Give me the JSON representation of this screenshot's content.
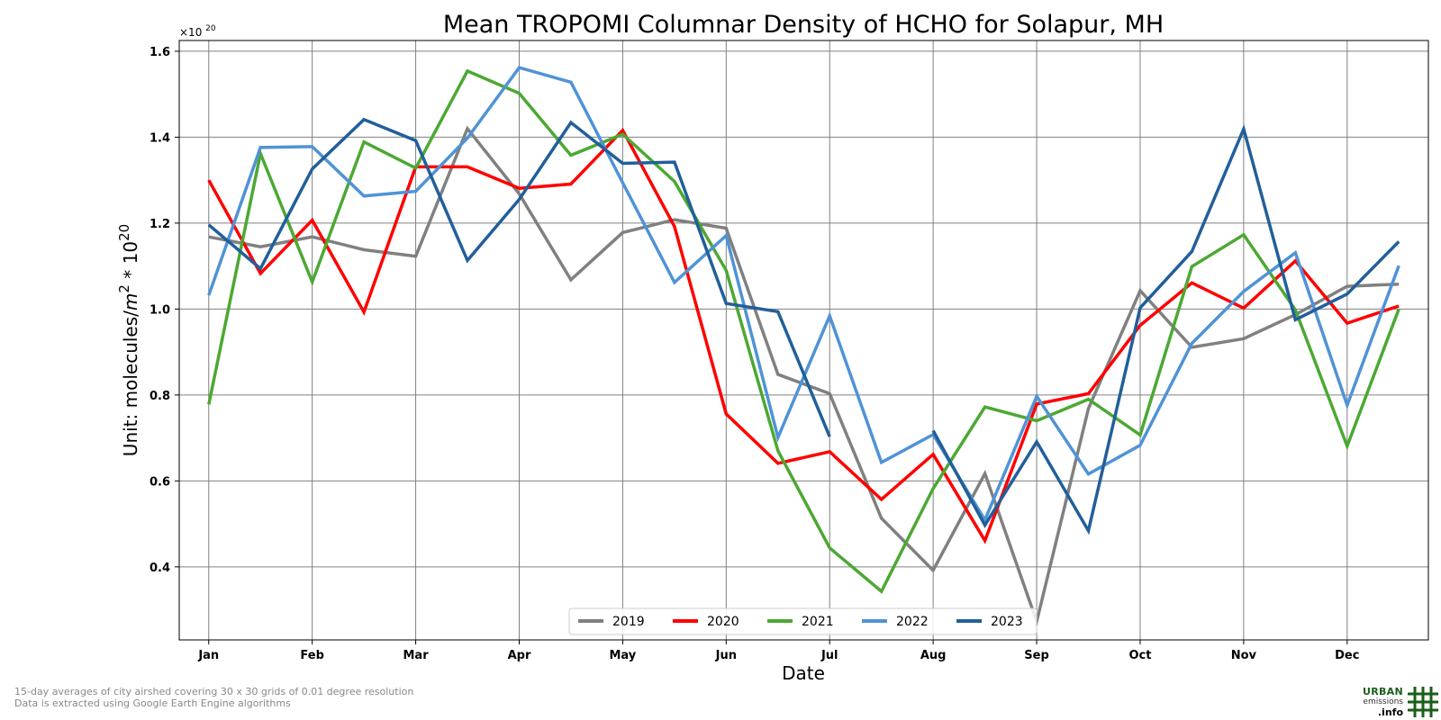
{
  "chart_data": {
    "type": "line",
    "title": "Mean TROPOMI Columnar Density of HCHO for Solapur, MH",
    "xlabel": "Date",
    "ylabel": "Unit: molecules/m² * 10²⁰",
    "ylabel_parts": {
      "prefix": "Unit: molecules/",
      "var": "m",
      "sup1": "2",
      "mid": " * 10",
      "sup2": "20"
    },
    "scale_label": {
      "base": "×10",
      "exp": "20"
    },
    "x_tick_labels": [
      "Jan",
      "Feb",
      "Mar",
      "Apr",
      "May",
      "Jun",
      "Jul",
      "Aug",
      "Sep",
      "Oct",
      "Nov",
      "Dec"
    ],
    "y_ticks": [
      0.4,
      0.6,
      0.8,
      1.0,
      1.2,
      1.4,
      1.6
    ],
    "y_tick_labels": [
      "0.4",
      "0.6",
      "0.8",
      "1.0",
      "1.2",
      "1.4",
      "1.6"
    ],
    "ylim": [
      0.23,
      1.625
    ],
    "xlim": [
      -0.57,
      23.57
    ],
    "grid": true,
    "legend_position": "bottom-center",
    "x_points_per_month": 2,
    "series": [
      {
        "name": "2019",
        "color": "#808080",
        "values": [
          1.168,
          1.145,
          1.168,
          1.138,
          1.123,
          1.42,
          1.268,
          1.068,
          1.178,
          1.208,
          1.188,
          0.848,
          0.803,
          0.513,
          0.392,
          0.617,
          0.273,
          0.768,
          1.043,
          0.911,
          0.931,
          0.987,
          1.053,
          1.058
        ]
      },
      {
        "name": "2020",
        "color": "#ff0000",
        "values": [
          1.3,
          1.083,
          1.207,
          0.993,
          1.331,
          1.331,
          1.281,
          1.291,
          1.416,
          1.192,
          0.756,
          0.641,
          0.668,
          0.557,
          0.662,
          0.461,
          0.779,
          0.803,
          0.962,
          1.061,
          1.002,
          1.112,
          0.967,
          1.007
        ]
      },
      {
        "name": "2021",
        "color": "#4ca832",
        "values": [
          0.778,
          1.362,
          1.063,
          1.389,
          1.328,
          1.554,
          1.502,
          1.358,
          1.407,
          1.297,
          1.09,
          0.67,
          0.444,
          0.343,
          0.582,
          0.772,
          0.74,
          0.79,
          0.707,
          1.099,
          1.173,
          0.998,
          0.681,
          1.0
        ]
      },
      {
        "name": "2022",
        "color": "#4f93d6",
        "values": [
          1.032,
          1.376,
          1.378,
          1.263,
          1.274,
          1.398,
          1.562,
          1.528,
          1.294,
          1.062,
          1.171,
          0.701,
          0.984,
          0.643,
          0.708,
          0.509,
          0.797,
          0.616,
          0.683,
          0.92,
          1.041,
          1.131,
          0.776,
          1.101
        ]
      },
      {
        "name": "2023",
        "color": "#215f9a",
        "values": [
          1.196,
          1.094,
          1.326,
          1.441,
          1.392,
          1.113,
          1.255,
          1.434,
          1.339,
          1.342,
          1.013,
          0.994,
          0.703,
          null,
          0.717,
          0.497,
          0.691,
          0.484,
          1.003,
          1.134,
          1.419,
          0.975,
          1.035,
          1.157
        ]
      }
    ]
  },
  "footnotes": {
    "line1": "15-day averages of city airshed covering 30 x 30 grids of 0.01 degree resolution",
    "line2": "Data is extracted using Google Earth Engine algorithms"
  },
  "logo": {
    "line1": "URBAN",
    "line2": "emissions",
    "line3": ".info",
    "color": "#1a5e1a"
  }
}
